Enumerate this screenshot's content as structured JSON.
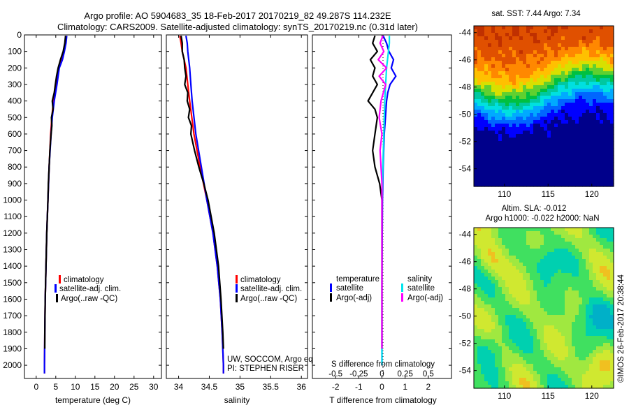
{
  "header": {
    "line1": "Argo profile: AO 5904683_35 18-Feb-2017 20170219_82 49.287S 114.232E",
    "line2": "Climatology: CARS2009. Satellite-adjusted climatology: synTS_20170219.nc (0.31d later)"
  },
  "colors": {
    "climatology": "#ff0000",
    "satellite": "#0000ff",
    "argo": "#000000",
    "argo_adj_salinity": "#ff00ff",
    "satellite_salinity": "#00e5ee"
  },
  "credit": "©IMOS 26-Feb-2017 20:38:44",
  "chart_data": [
    {
      "type": "line",
      "xlabel": "temperature (deg C)",
      "ylabel": "",
      "xlim": [
        -3,
        32
      ],
      "ylim": [
        2080,
        0
      ],
      "x_ticks": [
        "0",
        "5",
        "10",
        "15",
        "20",
        "25",
        "30"
      ],
      "y_ticks": [
        "0",
        "100",
        "200",
        "300",
        "400",
        "500",
        "600",
        "700",
        "800",
        "900",
        "1000",
        "1100",
        "1200",
        "1300",
        "1400",
        "1500",
        "1600",
        "1700",
        "1800",
        "1900",
        "2000"
      ],
      "legend": [
        "climatology",
        "satellite-adj. clim.",
        "Argo(..raw -QC)"
      ],
      "series": [
        {
          "name": "climatology",
          "color": "#ff0000",
          "depth": [
            5,
            50,
            100,
            150,
            200,
            300,
            400,
            500,
            600,
            800,
            1000,
            1200,
            1400,
            1600,
            1800,
            2000,
            2050
          ],
          "values": [
            7.6,
            7.4,
            7.0,
            6.4,
            5.7,
            5.1,
            4.4,
            4.0,
            3.7,
            3.3,
            3.0,
            2.7,
            2.5,
            2.3,
            2.2,
            2.1,
            2.1
          ]
        },
        {
          "name": "satellite-adj. clim.",
          "color": "#0000ff",
          "depth": [
            5,
            50,
            100,
            150,
            200,
            300,
            400,
            500,
            600,
            800,
            1000,
            1200,
            1400,
            1600,
            1800,
            2000,
            2050
          ],
          "values": [
            7.8,
            7.6,
            7.2,
            6.7,
            5.9,
            5.3,
            4.6,
            4.1,
            3.8,
            3.3,
            3.0,
            2.7,
            2.5,
            2.3,
            2.2,
            2.1,
            2.1
          ]
        },
        {
          "name": "Argo(..raw -QC)",
          "color": "#000000",
          "depth": [
            5,
            50,
            100,
            150,
            200,
            250,
            300,
            350,
            400,
            450,
            500,
            550,
            600,
            700,
            800,
            900,
            1000,
            1200,
            1400,
            1600,
            1800,
            1900
          ],
          "values": [
            7.5,
            7.3,
            6.9,
            6.2,
            5.6,
            5.2,
            4.9,
            4.6,
            4.1,
            4.3,
            3.9,
            4.0,
            3.8,
            3.5,
            3.3,
            3.1,
            3.0,
            2.7,
            2.5,
            2.3,
            2.2,
            2.2
          ]
        }
      ]
    },
    {
      "type": "line",
      "xlabel": "salinity",
      "ylabel": "",
      "xlim": [
        33.8,
        36.1
      ],
      "ylim": [
        2080,
        0
      ],
      "x_ticks": [
        "34",
        "34.5",
        "35",
        "35.5",
        "36"
      ],
      "legend": [
        "climatology",
        "satellite-adj. clim.",
        "Argo(..raw -QC)"
      ],
      "annotation": [
        "UW, SOCCOM, Argo equivalent",
        "PI: STEPHEN RISER"
      ],
      "series": [
        {
          "name": "climatology",
          "color": "#ff0000",
          "depth": [
            5,
            50,
            100,
            200,
            300,
            400,
            600,
            800,
            1000,
            1200,
            1400,
            1600,
            1800,
            2000,
            2050
          ],
          "values": [
            34.02,
            34.04,
            34.06,
            34.12,
            34.15,
            34.18,
            34.25,
            34.35,
            34.46,
            34.56,
            34.63,
            34.68,
            34.71,
            34.73,
            34.73
          ]
        },
        {
          "name": "satellite-adj. clim.",
          "color": "#0000ff",
          "depth": [
            5,
            50,
            100,
            200,
            300,
            400,
            600,
            800,
            1000,
            1200,
            1400,
            1600,
            1800,
            2000,
            2050
          ],
          "values": [
            34.12,
            34.14,
            34.15,
            34.18,
            34.2,
            34.22,
            34.28,
            34.37,
            34.46,
            34.56,
            34.63,
            34.68,
            34.71,
            34.73,
            34.73
          ]
        },
        {
          "name": "Argo(..raw -QC)",
          "color": "#000000",
          "depth": [
            5,
            50,
            100,
            150,
            200,
            250,
            300,
            350,
            400,
            450,
            500,
            550,
            600,
            700,
            800,
            900,
            1000,
            1200,
            1400,
            1600,
            1800,
            1900
          ],
          "values": [
            34.04,
            34.06,
            34.06,
            34.09,
            34.1,
            34.12,
            34.1,
            34.15,
            34.14,
            34.18,
            34.16,
            34.21,
            34.2,
            34.26,
            34.33,
            34.41,
            34.48,
            34.58,
            34.65,
            34.69,
            34.72,
            34.73
          ]
        }
      ]
    },
    {
      "type": "line",
      "xlabel": "T difference from climatology",
      "ylabel": "",
      "top_label": "S difference from climatology",
      "xlim": [
        -3,
        3
      ],
      "ylim": [
        2080,
        0
      ],
      "x_ticks": [
        "-2",
        "-1",
        "0",
        "1",
        "2"
      ],
      "s_ticks": [
        "-0.5",
        "-0.25",
        "0",
        "0.25",
        "0.5"
      ],
      "legend_temperature": {
        "heading": "temperature",
        "items": [
          "satellite",
          "Argo(-adj)"
        ]
      },
      "legend_salinity": {
        "heading": "salinity",
        "items": [
          "satellite",
          "Argo(-adj)"
        ]
      },
      "series": [
        {
          "name": "temperature satellite",
          "color": "#0000ff",
          "depth": [
            5,
            50,
            100,
            150,
            200,
            250,
            300,
            350,
            400,
            500,
            600,
            800,
            1000,
            1500,
            2000
          ],
          "values": [
            0.05,
            0.2,
            0.3,
            0.5,
            0.4,
            0.6,
            0.35,
            0.25,
            0.2,
            0.15,
            0.1,
            0.05,
            0.02,
            0.0,
            0.0
          ]
        },
        {
          "name": "temperature Argo(-adj)",
          "color": "#000000",
          "depth": [
            5,
            50,
            100,
            150,
            200,
            250,
            300,
            400,
            450,
            500,
            600,
            700,
            800,
            900,
            1000,
            1500,
            1900
          ],
          "values": [
            -0.3,
            -0.4,
            -0.2,
            -0.5,
            -0.3,
            -0.4,
            -0.2,
            -0.6,
            -0.3,
            -0.2,
            -0.3,
            -0.4,
            -0.3,
            -0.1,
            0.0,
            0.0,
            0.0
          ]
        },
        {
          "name": "salinity satellite",
          "color": "#00e5ee",
          "depth": [
            5,
            50,
            100,
            200,
            300,
            400,
            600,
            800,
            1000,
            1500,
            2000
          ],
          "values": [
            0.08,
            0.08,
            0.07,
            0.05,
            0.04,
            0.03,
            0.02,
            0.01,
            0.0,
            0.0,
            0.0
          ]
        },
        {
          "name": "salinity Argo(-adj)",
          "color": "#ff00ff",
          "depth": [
            5,
            50,
            100,
            150,
            200,
            250,
            300,
            400,
            500,
            600,
            700,
            800,
            900,
            1000,
            1500,
            1900
          ],
          "values": [
            0.01,
            -0.02,
            0.02,
            -0.04,
            0.05,
            -0.03,
            0.04,
            -0.01,
            -0.03,
            0.0,
            -0.02,
            -0.01,
            0.0,
            0.0,
            0.0,
            0.0
          ]
        }
      ]
    },
    {
      "type": "heatmap",
      "title": "sat. SST: 7.44  Argo: 7.34",
      "x_ticks": [
        "110",
        "115",
        "120"
      ],
      "y_ticks": [
        "-44",
        "-46",
        "-48",
        "-50",
        "-52",
        "-54"
      ],
      "xlim": [
        106.5,
        122.5
      ],
      "ylim": [
        -55.3,
        -43.5
      ],
      "colormap": [
        "#00008b",
        "#0000ff",
        "#0066ff",
        "#00aaff",
        "#00e0e0",
        "#00c8a0",
        "#00c040",
        "#60d030",
        "#d8e000",
        "#ffc000",
        "#ff8800",
        "#e05000",
        "#c03000"
      ]
    },
    {
      "type": "heatmap",
      "title": "Altim. SLA: -0.012",
      "subtitle": "Argo h1000: -0.022  h2000: NaN",
      "x_ticks": [
        "110",
        "115",
        "120"
      ],
      "y_ticks": [
        "-44",
        "-46",
        "-48",
        "-50",
        "-52",
        "-54"
      ],
      "xlim": [
        106.5,
        122.5
      ],
      "ylim": [
        -55.3,
        -43.5
      ],
      "colormap": [
        "#00b0c8",
        "#00d0b0",
        "#40e060",
        "#a0e840",
        "#d0e830",
        "#f0c020",
        "#f09020"
      ]
    }
  ]
}
